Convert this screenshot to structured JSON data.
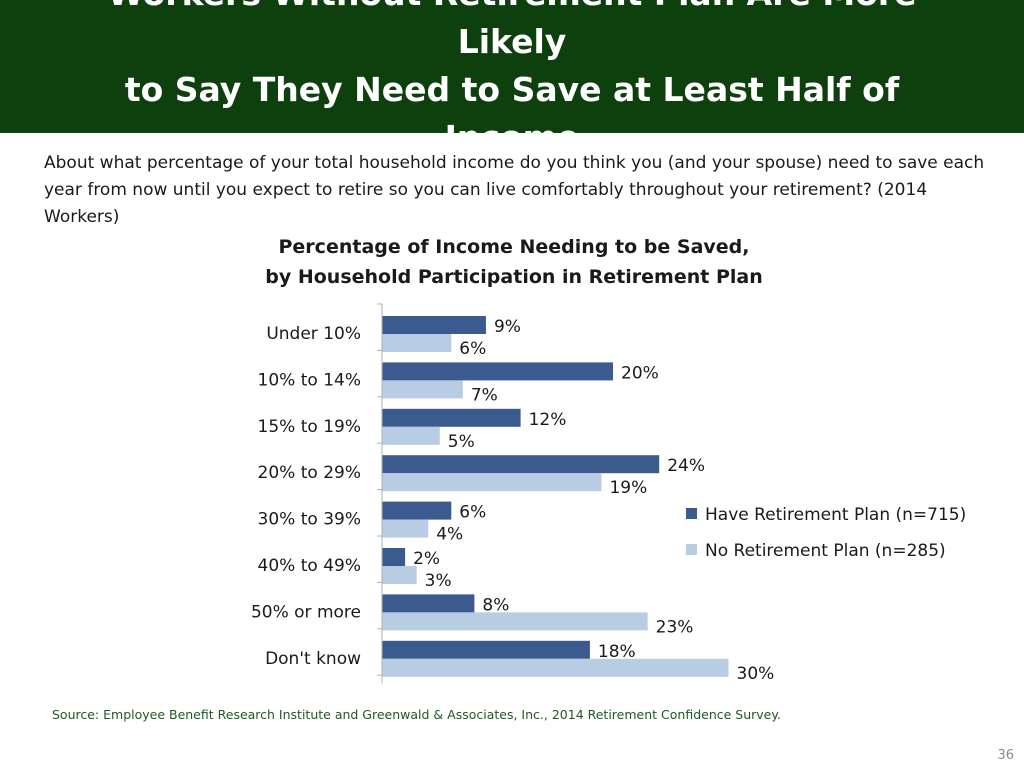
{
  "header": {
    "title_line1": "Workers Without Retirement Plan Are More Likely",
    "title_line2": "to Say They Need to Save at Least Half of Income"
  },
  "question": {
    "text": "About what percentage of your total household income do you think you (and your spouse) need to save each year from now until you expect to retire so you can live comfortably throughout your retirement? (2014 Workers)"
  },
  "colors": {
    "header_bg": "#0d400d",
    "have_plan": "#3b5a8e",
    "no_plan": "#b8cce4",
    "source_text": "#1f5a1f"
  },
  "chart_data": {
    "type": "bar",
    "orientation": "horizontal",
    "title_line1": "Percentage of Income Needing to be Saved,",
    "title_line2": "by Household Participation in Retirement Plan",
    "categories": [
      "Under 10%",
      "10% to 14%",
      "15% to 19%",
      "20% to 29%",
      "30% to 39%",
      "40% to 49%",
      "50% or more",
      "Don't know"
    ],
    "series": [
      {
        "name": "Have Retirement Plan (n=715)",
        "values": [
          9,
          20,
          12,
          24,
          6,
          2,
          8,
          18
        ],
        "labels": [
          "9%",
          "20%",
          "12%",
          "24%",
          "6%",
          "2%",
          "8%",
          "18%"
        ],
        "color": "#3b5a8e"
      },
      {
        "name": "No Retirement Plan (n=285)",
        "values": [
          6,
          7,
          5,
          19,
          4,
          3,
          23,
          30
        ],
        "labels": [
          "6%",
          "7%",
          "5%",
          "19%",
          "4%",
          "3%",
          "23%",
          "30%"
        ],
        "color": "#b8cce4"
      }
    ],
    "xlim": [
      0,
      30
    ],
    "grid": false,
    "legend_position": "right"
  },
  "footer": {
    "source": "Source:  Employee Benefit Research Institute and Greenwald & Associates, Inc., 2014 Retirement Confidence Survey.",
    "page_number": "36"
  }
}
